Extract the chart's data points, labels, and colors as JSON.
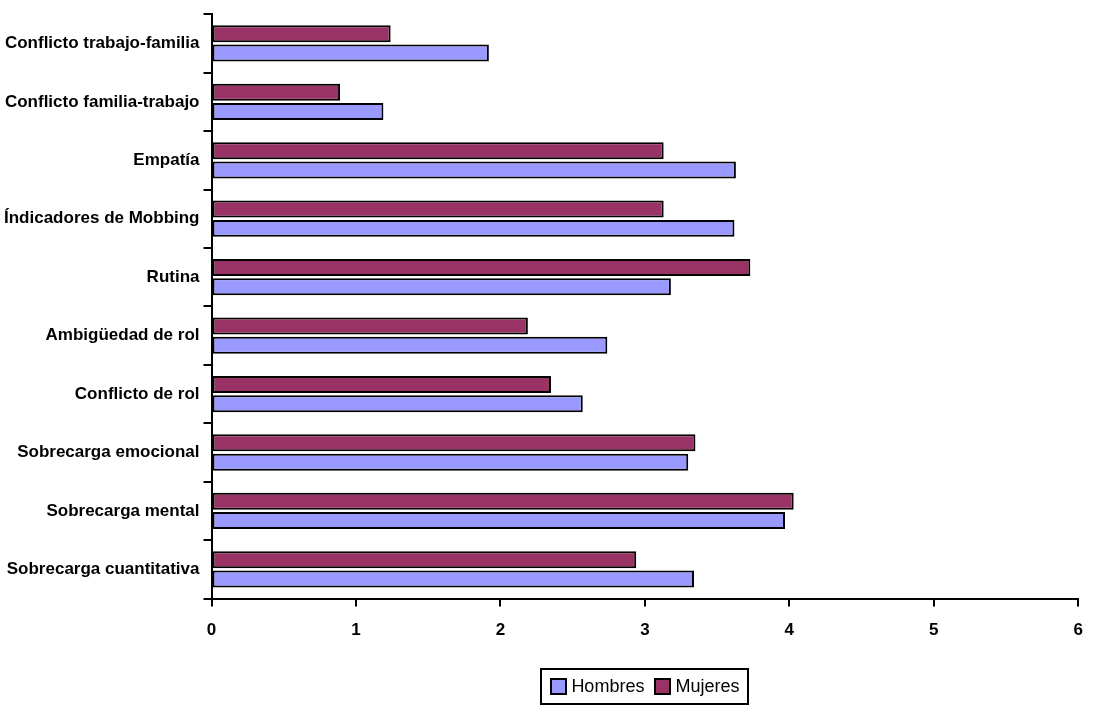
{
  "chart_data": {
    "type": "bar",
    "orientation": "horizontal",
    "categories": [
      "Conflicto trabajo-familia",
      "Conflicto familia-trabajo",
      "Empatía",
      "Índicadores de Mobbing",
      "Rutina",
      "Ambigüedad de rol",
      "Conflicto de rol",
      "Sobrecarga emocional",
      "Sobrecarga mental",
      "Sobrecarga cuantitativa"
    ],
    "series": [
      {
        "name": "Hombres",
        "color": "#9999ff",
        "values": [
          1.92,
          1.19,
          3.63,
          3.62,
          3.18,
          2.74,
          2.57,
          3.3,
          3.97,
          3.34
        ]
      },
      {
        "name": "Mujeres",
        "color": "#993366",
        "values": [
          1.24,
          0.89,
          3.13,
          3.13,
          3.73,
          2.19,
          2.35,
          3.35,
          4.03,
          2.94
        ]
      }
    ],
    "xlim": [
      0,
      6
    ],
    "xticks": [
      0,
      1,
      2,
      3,
      4,
      5,
      6
    ],
    "grid": false,
    "legend": "bottom"
  }
}
